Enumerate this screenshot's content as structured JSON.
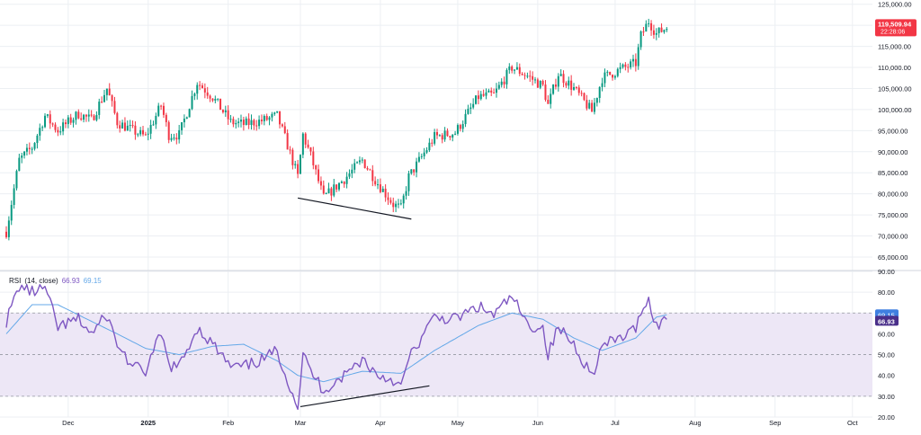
{
  "colors": {
    "up": "#089981",
    "down": "#f23645",
    "rsi_line": "#7e57c2",
    "rsi_ma": "#64a8e8",
    "rsi_band": "#ede7f6",
    "grid": "#eceff3",
    "text": "#131722",
    "trendline": "#131722",
    "price_badge": "#f23645",
    "rsi_badge": "#4a2f8a",
    "ma_badge": "#3f7fe0"
  },
  "rsi_legend": {
    "name": "RSI",
    "params": "(14, close)",
    "value": "66.93",
    "ma_value": "69.15"
  },
  "price_badge": {
    "price": "119,509.94",
    "countdown": "22:28:06"
  },
  "rsi_badges": {
    "ma": "69.15",
    "rsi": "66.93"
  },
  "chart_data": [
    {
      "type": "candlestick",
      "ylim": [
        62000,
        126000
      ],
      "y_ticks": [
        "125,000.00",
        "120,000.00",
        "115,000.00",
        "110,000.00",
        "105,000.00",
        "100,000.00",
        "95,000.00",
        "90,000.00",
        "85,000.00",
        "80,000.00",
        "75,000.00",
        "70,000.00",
        "65,000.00"
      ],
      "y_tick_values": [
        125000,
        120000,
        115000,
        110000,
        105000,
        100000,
        95000,
        90000,
        85000,
        80000,
        75000,
        70000,
        65000
      ],
      "x_labels": [
        "Dec",
        "2025",
        "Feb",
        "Mar",
        "Apr",
        "May",
        "Jun",
        "Jul",
        "Aug",
        "Sep",
        "Oct"
      ],
      "x_label_dates": [
        "2024-12-01",
        "2025-01-01",
        "2025-02-01",
        "2025-03-01",
        "2025-04-01",
        "2025-05-01",
        "2025-06-01",
        "2025-07-01",
        "2025-08-01",
        "2025-09-01",
        "2025-10-01"
      ],
      "x_range": [
        "2024-11-07",
        "2025-10-07"
      ],
      "anchors": [
        [
          "2024-11-07",
          71000
        ],
        [
          "2024-11-12",
          88000
        ],
        [
          "2024-11-17",
          91000
        ],
        [
          "2024-11-22",
          98500
        ],
        [
          "2024-11-27",
          95000
        ],
        [
          "2024-12-05",
          99000
        ],
        [
          "2024-12-10",
          97500
        ],
        [
          "2024-12-16",
          105000
        ],
        [
          "2024-12-20",
          97000
        ],
        [
          "2024-12-26",
          95000
        ],
        [
          "2024-12-31",
          93500
        ],
        [
          "2025-01-06",
          101000
        ],
        [
          "2025-01-09",
          94000
        ],
        [
          "2025-01-13",
          94000
        ],
        [
          "2025-01-20",
          106500
        ],
        [
          "2025-01-26",
          103000
        ],
        [
          "2025-02-02",
          97000
        ],
        [
          "2025-02-07",
          96500
        ],
        [
          "2025-02-15",
          97500
        ],
        [
          "2025-02-20",
          98500
        ],
        [
          "2025-02-24",
          91500
        ],
        [
          "2025-02-28",
          84000
        ],
        [
          "2025-03-02",
          94000
        ],
        [
          "2025-03-05",
          89000
        ],
        [
          "2025-03-10",
          79000
        ],
        [
          "2025-03-18",
          83500
        ],
        [
          "2025-03-25",
          88000
        ],
        [
          "2025-03-31",
          82500
        ],
        [
          "2025-04-06",
          77500
        ],
        [
          "2025-04-09",
          76500
        ],
        [
          "2025-04-12",
          84000
        ],
        [
          "2025-04-22",
          93500
        ],
        [
          "2025-04-30",
          94500
        ],
        [
          "2025-05-09",
          103000
        ],
        [
          "2025-05-15",
          103500
        ],
        [
          "2025-05-22",
          110000
        ],
        [
          "2025-05-28",
          108000
        ],
        [
          "2025-06-03",
          105500
        ],
        [
          "2025-06-05",
          101000
        ],
        [
          "2025-06-09",
          108500
        ],
        [
          "2025-06-15",
          105000
        ],
        [
          "2025-06-22",
          99500
        ],
        [
          "2025-06-26",
          107500
        ],
        [
          "2025-07-03",
          109500
        ],
        [
          "2025-07-09",
          111000
        ],
        [
          "2025-07-11",
          117500
        ],
        [
          "2025-07-14",
          121000
        ],
        [
          "2025-07-17",
          118000
        ],
        [
          "2025-07-21",
          119500
        ]
      ],
      "lows": [
        {
          "date": "2025-03-10",
          "value": 76600
        },
        {
          "date": "2025-04-09",
          "value": 74500
        }
      ],
      "trendline": [
        [
          "2025-02-28",
          79000
        ],
        [
          "2025-04-13",
          74000
        ]
      ],
      "last_price": 119509.94
    },
    {
      "type": "line",
      "title": "RSI",
      "ylim": [
        20,
        90
      ],
      "y_ticks": [
        "90.00",
        "80.00",
        "70.00",
        "60.00",
        "50.00",
        "40.00",
        "30.00",
        "20.00"
      ],
      "y_tick_values": [
        90,
        80,
        70,
        60,
        50,
        40,
        30,
        20
      ],
      "band": [
        30,
        70
      ],
      "midline": 50,
      "series": [
        {
          "name": "RSI",
          "anchors": [
            [
              "2024-11-07",
              66
            ],
            [
              "2024-11-12",
              83
            ],
            [
              "2024-11-17",
              80
            ],
            [
              "2024-11-22",
              82
            ],
            [
              "2024-11-27",
              63
            ],
            [
              "2024-12-05",
              67
            ],
            [
              "2024-12-10",
              60
            ],
            [
              "2024-12-16",
              69
            ],
            [
              "2024-12-20",
              55
            ],
            [
              "2024-12-26",
              44
            ],
            [
              "2024-12-31",
              42
            ],
            [
              "2025-01-06",
              60
            ],
            [
              "2025-01-09",
              45
            ],
            [
              "2025-01-13",
              44
            ],
            [
              "2025-01-20",
              63
            ],
            [
              "2025-01-26",
              55
            ],
            [
              "2025-02-02",
              44
            ],
            [
              "2025-02-07",
              44
            ],
            [
              "2025-02-15",
              48
            ],
            [
              "2025-02-20",
              52
            ],
            [
              "2025-02-24",
              38
            ],
            [
              "2025-02-28",
              25
            ],
            [
              "2025-03-02",
              50
            ],
            [
              "2025-03-05",
              42
            ],
            [
              "2025-03-10",
              33
            ],
            [
              "2025-03-18",
              40
            ],
            [
              "2025-03-25",
              48
            ],
            [
              "2025-03-31",
              40
            ],
            [
              "2025-04-06",
              38
            ],
            [
              "2025-04-09",
              34
            ],
            [
              "2025-04-12",
              48
            ],
            [
              "2025-04-22",
              68
            ],
            [
              "2025-04-30",
              67
            ],
            [
              "2025-05-09",
              73
            ],
            [
              "2025-05-15",
              69
            ],
            [
              "2025-05-22",
              78
            ],
            [
              "2025-05-28",
              64
            ],
            [
              "2025-06-03",
              63
            ],
            [
              "2025-06-05",
              50
            ],
            [
              "2025-06-09",
              63
            ],
            [
              "2025-06-15",
              55
            ],
            [
              "2025-06-22",
              40
            ],
            [
              "2025-06-26",
              54
            ],
            [
              "2025-07-03",
              58
            ],
            [
              "2025-07-09",
              62
            ],
            [
              "2025-07-11",
              72
            ],
            [
              "2025-07-14",
              76
            ],
            [
              "2025-07-17",
              64
            ],
            [
              "2025-07-21",
              66.93
            ]
          ]
        },
        {
          "name": "RSI MA",
          "anchors": [
            [
              "2024-11-07",
              60
            ],
            [
              "2024-11-17",
              74
            ],
            [
              "2024-11-27",
              74
            ],
            [
              "2024-12-10",
              66
            ],
            [
              "2024-12-20",
              60
            ],
            [
              "2024-12-31",
              53
            ],
            [
              "2025-01-13",
              50
            ],
            [
              "2025-01-26",
              54
            ],
            [
              "2025-02-07",
              55
            ],
            [
              "2025-02-20",
              47
            ],
            [
              "2025-02-28",
              40
            ],
            [
              "2025-03-10",
              37
            ],
            [
              "2025-03-25",
              42
            ],
            [
              "2025-04-09",
              41
            ],
            [
              "2025-04-22",
              52
            ],
            [
              "2025-05-09",
              64
            ],
            [
              "2025-05-22",
              70
            ],
            [
              "2025-06-03",
              67
            ],
            [
              "2025-06-15",
              58
            ],
            [
              "2025-06-26",
              52
            ],
            [
              "2025-07-09",
              58
            ],
            [
              "2025-07-17",
              68
            ],
            [
              "2025-07-21",
              69.15
            ]
          ]
        }
      ],
      "trendline": [
        [
          "2025-03-01",
          25
        ],
        [
          "2025-04-20",
          35
        ]
      ],
      "last_value": 66.93,
      "last_ma": 69.15
    }
  ]
}
